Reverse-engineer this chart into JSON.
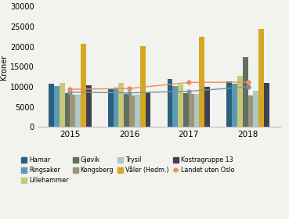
{
  "years": [
    2015,
    2016,
    2017,
    2018
  ],
  "series": {
    "Hamar": [
      10700,
      9600,
      11900,
      11300
    ],
    "Ringsaker": [
      10200,
      9900,
      10200,
      10800
    ],
    "Lillehammer": [
      10900,
      10900,
      10600,
      12800
    ],
    "Gjøvik": [
      8400,
      8200,
      8400,
      17500
    ],
    "Kongsberg": [
      8100,
      7900,
      8200,
      7800
    ],
    "Trysil": [
      8100,
      8000,
      8300,
      9100
    ],
    "Våler (Hedm.)": [
      20800,
      20200,
      22500,
      24500
    ],
    "Kostragruppe 13": [
      10500,
      8700,
      10100,
      10900
    ]
  },
  "lines": {
    "Kostragruppe 13 line": [
      8700,
      8500,
      8900,
      10000
    ],
    "Landet uten Oslo": [
      9400,
      9600,
      11100,
      11200
    ]
  },
  "bar_colors": {
    "Hamar": "#2b5f7e",
    "Ringsaker": "#5b9ab5",
    "Lillehammer": "#c8c87a",
    "Gjøvik": "#607060",
    "Kongsberg": "#a09478",
    "Trysil": "#adc8c8",
    "Våler (Hedm.)": "#d4a820",
    "Kostragruppe 13": "#404050"
  },
  "line_colors": {
    "Kostragruppe 13 line": "#8090a0",
    "Landet uten Oslo": "#e8905a"
  },
  "ylabel": "Kroner",
  "ylim": [
    0,
    30000
  ],
  "yticks": [
    0,
    5000,
    10000,
    15000,
    20000,
    25000,
    30000
  ],
  "legend_colors": {
    "Hamar": "#2b5f7e",
    "Ringsaker": "#5b9ab5",
    "Lillehammer": "#c8c87a",
    "Gjøvik": "#607060",
    "Kongsberg": "#a09478",
    "Trysil": "#adc8c8",
    "Våler (Hedm.)": "#d4a820",
    "Kostragruppe 13": "#404050",
    "Landet uten Oslo": "#e8905a"
  },
  "bg_color": "#f2f2ee"
}
